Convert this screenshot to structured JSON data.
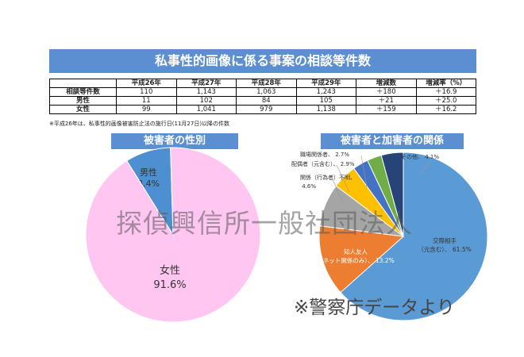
{
  "title": "私事性的画像に係る事案の相談等件数",
  "table": {
    "headers": [
      "",
      "平成26年",
      "平成27年",
      "平成28年",
      "平成29年",
      "増減数",
      "増減率（%）"
    ],
    "rows": [
      [
        "相談等件数",
        "110",
        "1,143",
        "1,063",
        "1,243",
        "＋180",
        "＋16.9"
      ],
      [
        "男性",
        "11",
        "102",
        "84",
        "105",
        "＋21",
        "＋25.0"
      ],
      [
        "女性",
        "99",
        "1,041",
        "979",
        "1,138",
        "＋159",
        "＋16.2"
      ]
    ]
  },
  "note": "※平成26年は、私事性的画像被害防止法の施行日(11月27日)以降の件数",
  "watermark": "探偵興信所一般社団法人",
  "source": "※警察庁データより",
  "chart_data": [
    {
      "type": "pie",
      "title": "被害者の性別",
      "slices": [
        {
          "label": "男性",
          "value_label": "8.4%",
          "value": 8.4,
          "color": "#4d8fd1"
        },
        {
          "label": "女性",
          "value_label": "91.6%",
          "value": 91.6,
          "color": "#ffc6f2"
        }
      ]
    },
    {
      "type": "pie",
      "title": "被害者と加害者の関係",
      "slices": [
        {
          "label": "交際相手（元含む）、",
          "value_label": "61.5%",
          "value": 61.5,
          "color": "#5b9bd5"
        },
        {
          "label": "知人友人（ネット関係のみ）、",
          "value_label": "13.2%",
          "value": 13.2,
          "color": "#ed7d31"
        },
        {
          "label": "知人友人（ネット関係以外）、",
          "value_label": "",
          "value": 8.0,
          "color": "#a5a5a5"
        },
        {
          "label": "関係（行為者）不明、",
          "value_label": "4.6%",
          "value": 4.6,
          "color": "#ffc000"
        },
        {
          "label": "配偶者（元含む）、",
          "value_label": "2.9%",
          "value": 2.9,
          "color": "#4472c4"
        },
        {
          "label": "職場関係者、",
          "value_label": "2.7%",
          "value": 2.7,
          "color": "#70ad47"
        },
        {
          "label": "その他、",
          "value_label": "4.1%",
          "value": 4.1,
          "color": "#264478"
        }
      ]
    }
  ]
}
